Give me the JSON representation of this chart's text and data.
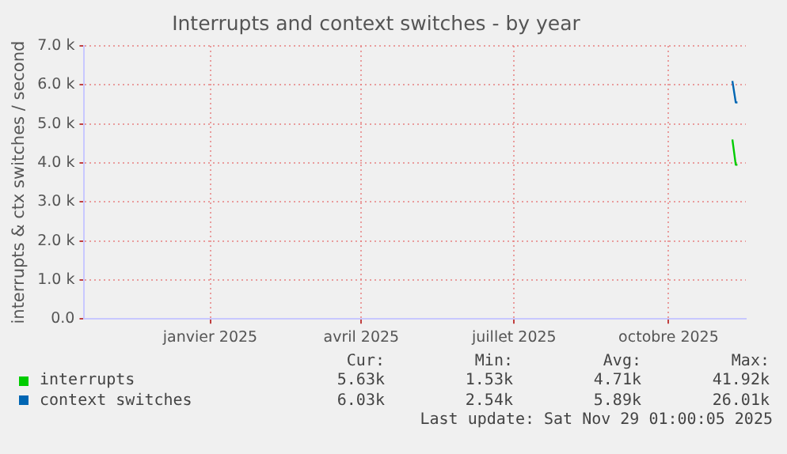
{
  "chart_data": {
    "type": "line",
    "title": "Interrupts and context switches - by year",
    "ylabel": "interrupts & ctx switches / second",
    "x": [
      "2025-11-22",
      "2025-11-24",
      "2025-11-25"
    ],
    "series": [
      {
        "name": "interrupts",
        "color": "#00cc00",
        "values": [
          4600,
          3950,
          3950
        ]
      },
      {
        "name": "context switches",
        "color": "#0066b3",
        "values": [
          6100,
          5550,
          5550
        ]
      }
    ],
    "xlim": [
      "2024-11-01",
      "2025-11-30"
    ],
    "xticks": [
      {
        "value": "2025-01-15",
        "label": "janvier 2025"
      },
      {
        "value": "2025-04-15",
        "label": "avril 2025"
      },
      {
        "value": "2025-07-15",
        "label": "juillet 2025"
      },
      {
        "value": "2025-10-15",
        "label": "octobre 2025"
      }
    ],
    "ylim": [
      0,
      7000
    ],
    "yticks": [
      {
        "value": 0,
        "label": "0.0"
      },
      {
        "value": 1000,
        "label": "1.0 k"
      },
      {
        "value": 2000,
        "label": "2.0 k"
      },
      {
        "value": 3000,
        "label": "3.0 k"
      },
      {
        "value": 4000,
        "label": "4.0 k"
      },
      {
        "value": 5000,
        "label": "5.0 k"
      },
      {
        "value": 6000,
        "label": "6.0 k"
      },
      {
        "value": 7000,
        "label": "7.0 k"
      }
    ],
    "grid": true,
    "legend": "bottom",
    "marker": "none",
    "line_style": "solid",
    "annotations": [
      "Cur:",
      "Min:",
      "Avg:",
      "Max:",
      "5.63k",
      "1.53k",
      "4.71k",
      "41.92k",
      "6.03k",
      "2.54k",
      "5.89k",
      "26.01k",
      "Last update: Sat Nov 29 01:00:05 2025"
    ]
  }
}
